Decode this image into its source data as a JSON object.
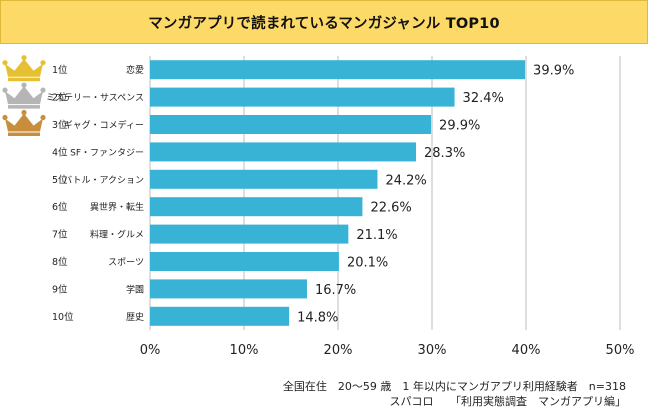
{
  "title": "マンガアプリで読まれているマンガジャンル TOP10",
  "captions": {
    "line1": "全国在住　20～59 歳　1 年以内にマンガアプリ利用経験者　n=318",
    "line2": "スパコロ　　「利用実態調査　マンガアプリ編」"
  },
  "colors": {
    "bar": "#38b3d5",
    "banner": "#fdda68",
    "gold": "#e6c033",
    "silver": "#b5b5b5",
    "bronze": "#c98e3c"
  },
  "chart_data": {
    "type": "bar",
    "orientation": "horizontal",
    "ranks": [
      "1位",
      "2位",
      "3位",
      "4位",
      "5位",
      "6位",
      "7位",
      "8位",
      "9位",
      "10位"
    ],
    "categories": [
      "恋愛",
      "ミステリー・サスペンス",
      "ギャグ・コメディー",
      "SF・ファンタジー",
      "バトル・アクション",
      "異世界・転生",
      "料理・グルメ",
      "スポーツ",
      "学園",
      "歴史"
    ],
    "values": [
      39.9,
      32.4,
      29.9,
      28.3,
      24.2,
      22.6,
      21.1,
      20.1,
      16.7,
      14.8
    ],
    "value_labels": [
      "39.9%",
      "32.4%",
      "29.9%",
      "28.3%",
      "24.2%",
      "22.6%",
      "21.1%",
      "20.1%",
      "16.7%",
      "14.8%"
    ],
    "xlim": [
      0,
      50
    ],
    "xticks": [
      0,
      10,
      20,
      30,
      40,
      50
    ],
    "xtick_labels": [
      "0%",
      "10%",
      "20%",
      "30%",
      "40%",
      "50%"
    ],
    "grid": true,
    "crowns": [
      "gold",
      "silver",
      "bronze"
    ]
  }
}
